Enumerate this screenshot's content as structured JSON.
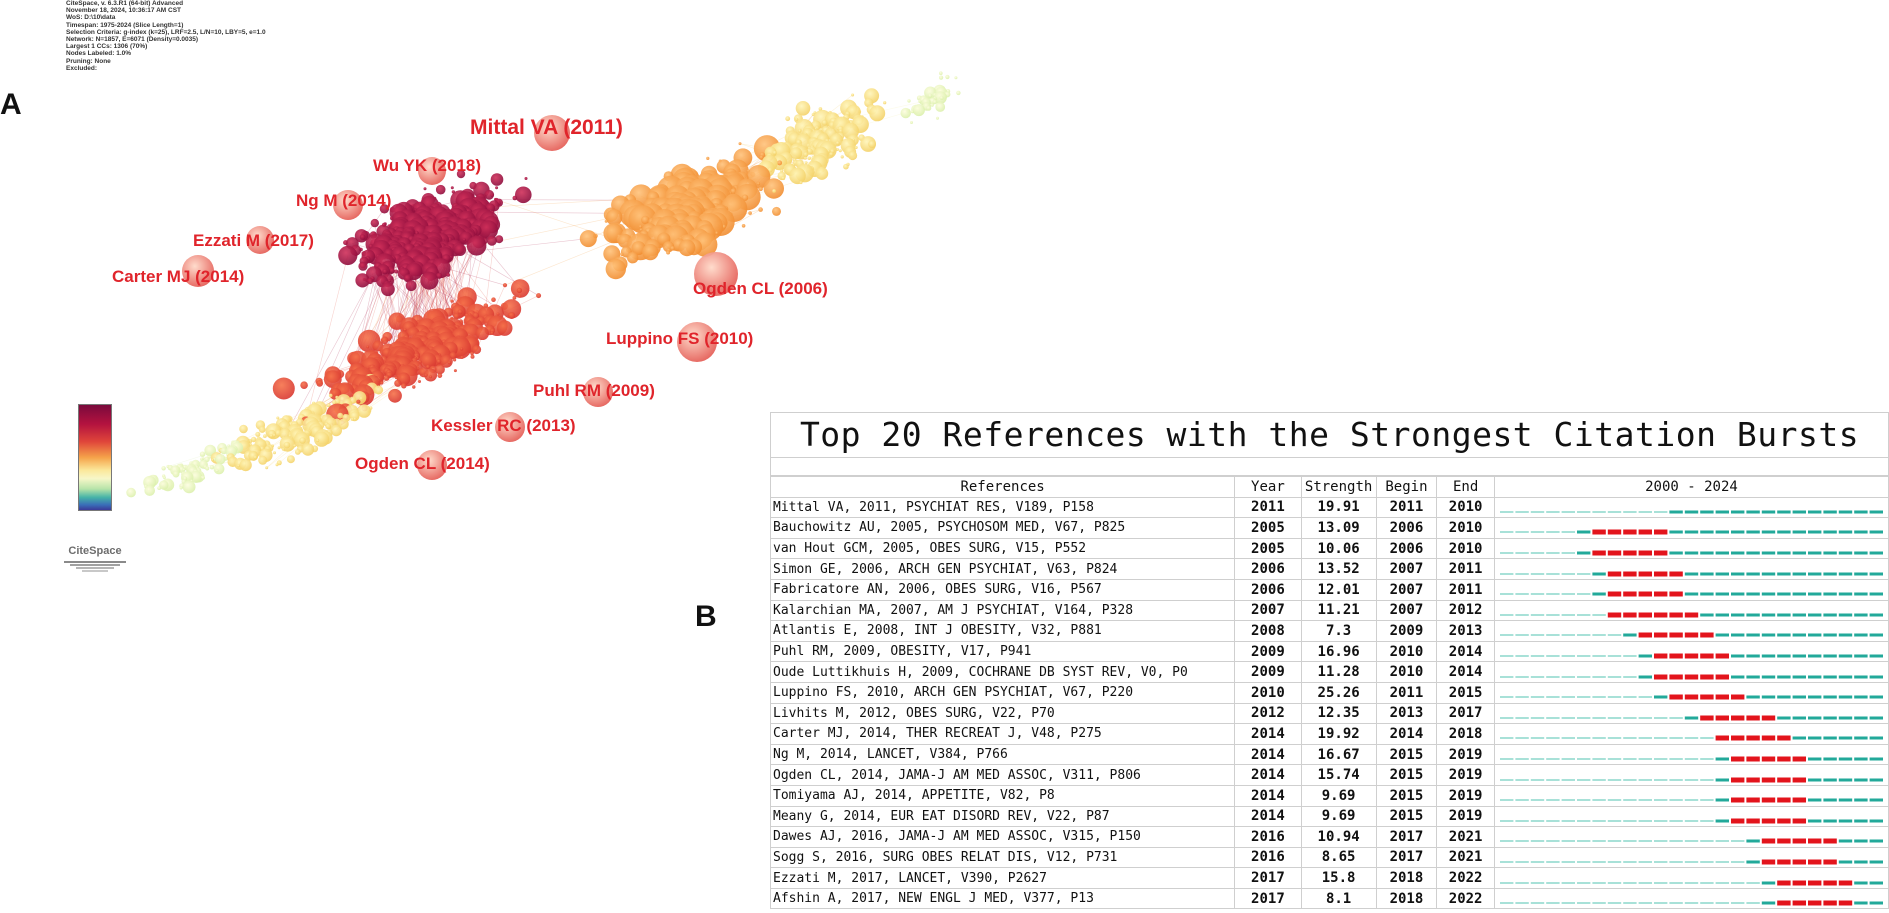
{
  "panel_a": {
    "letter": "A",
    "meta_lines": [
      "CiteSpace, v. 6.3.R1 (64-bit) Advanced",
      "November 18, 2024, 10:36:17 AM CST",
      "WoS: D:\\10\\data",
      "Timespan: 1975-2024 (Slice Length=1)",
      "Selection Criteria: g-index (k=25), LRF=2.5, L/N=10, LBY=5, e=1.0",
      "Network: N=1857, E=6071 (Density=0.0035)",
      "Largest 1 CCs: 1306 (70%)",
      "Nodes Labeled: 1.0%",
      "Pruning: None",
      "Excluded:"
    ],
    "node_labels": [
      "Mittal VA (2011)",
      "Wu YK (2018)",
      "Ng M (2014)",
      "Ezzati M (2017)",
      "Carter MJ (2014)",
      "Ogden CL (2006)",
      "Luppino FS (2010)",
      "Puhl RM (2009)",
      "Kessler RC (2013)",
      "Ogden CL (2014)"
    ],
    "label_color": "#e0242b",
    "logo_text": "CiteSpace"
  },
  "panel_b": {
    "letter": "B",
    "title": "Top 20 References with the Strongest Citation Bursts",
    "headers": {
      "references": "References",
      "year": "Year",
      "strength": "Strength",
      "begin": "Begin",
      "end": "End",
      "range": "2000 - 2024"
    },
    "timeline_start": 2000,
    "timeline_end": 2024,
    "colors": {
      "burst": "#e3141c",
      "active": "#22a99a",
      "inactive": "#a8e1d8"
    },
    "rows": [
      {
        "ref": "Mittal VA, 2011, PSYCHIAT RES, V189, P158",
        "year": "2011",
        "strength": "19.91",
        "begin": "2011",
        "end": "2010",
        "pub": 2011,
        "b": null,
        "e": null
      },
      {
        "ref": "Bauchowitz AU, 2005, PSYCHOSOM MED, V67, P825",
        "year": "2005",
        "strength": "13.09",
        "begin": "2006",
        "end": "2010",
        "pub": 2005,
        "b": 2006,
        "e": 2010
      },
      {
        "ref": "van Hout GCM, 2005, OBES SURG, V15, P552",
        "year": "2005",
        "strength": "10.06",
        "begin": "2006",
        "end": "2010",
        "pub": 2005,
        "b": 2006,
        "e": 2010
      },
      {
        "ref": "Simon GE, 2006, ARCH GEN PSYCHIAT, V63, P824",
        "year": "2006",
        "strength": "13.52",
        "begin": "2007",
        "end": "2011",
        "pub": 2006,
        "b": 2007,
        "e": 2011
      },
      {
        "ref": "Fabricatore AN, 2006, OBES SURG, V16, P567",
        "year": "2006",
        "strength": "12.01",
        "begin": "2007",
        "end": "2011",
        "pub": 2006,
        "b": 2007,
        "e": 2011
      },
      {
        "ref": "Kalarchian MA, 2007, AM J PSYCHIAT, V164, P328",
        "year": "2007",
        "strength": "11.21",
        "begin": "2007",
        "end": "2012",
        "pub": 2007,
        "b": 2007,
        "e": 2012
      },
      {
        "ref": "Atlantis E, 2008, INT J OBESITY, V32, P881",
        "year": "2008",
        "strength": "7.3",
        "begin": "2009",
        "end": "2013",
        "pub": 2008,
        "b": 2009,
        "e": 2013
      },
      {
        "ref": "Puhl RM, 2009, OBESITY, V17, P941",
        "year": "2009",
        "strength": "16.96",
        "begin": "2010",
        "end": "2014",
        "pub": 2009,
        "b": 2010,
        "e": 2014
      },
      {
        "ref": "Oude Luttikhuis H, 2009, COCHRANE DB SYST REV, V0, P0",
        "year": "2009",
        "strength": "11.28",
        "begin": "2010",
        "end": "2014",
        "pub": 2009,
        "b": 2010,
        "e": 2014
      },
      {
        "ref": "Luppino FS, 2010, ARCH GEN PSYCHIAT, V67, P220",
        "year": "2010",
        "strength": "25.26",
        "begin": "2011",
        "end": "2015",
        "pub": 2010,
        "b": 2011,
        "e": 2015
      },
      {
        "ref": "Livhits M, 2012, OBES SURG, V22, P70",
        "year": "2012",
        "strength": "12.35",
        "begin": "2013",
        "end": "2017",
        "pub": 2012,
        "b": 2013,
        "e": 2017
      },
      {
        "ref": "Carter MJ, 2014, THER RECREAT J, V48, P275",
        "year": "2014",
        "strength": "19.92",
        "begin": "2014",
        "end": "2018",
        "pub": 2014,
        "b": 2014,
        "e": 2018
      },
      {
        "ref": "Ng M, 2014, LANCET, V384, P766",
        "year": "2014",
        "strength": "16.67",
        "begin": "2015",
        "end": "2019",
        "pub": 2014,
        "b": 2015,
        "e": 2019
      },
      {
        "ref": "Ogden CL, 2014, JAMA-J AM MED ASSOC, V311, P806",
        "year": "2014",
        "strength": "15.74",
        "begin": "2015",
        "end": "2019",
        "pub": 2014,
        "b": 2015,
        "e": 2019
      },
      {
        "ref": "Tomiyama AJ, 2014, APPETITE, V82, P8",
        "year": "2014",
        "strength": "9.69",
        "begin": "2015",
        "end": "2019",
        "pub": 2014,
        "b": 2015,
        "e": 2019
      },
      {
        "ref": "Meany G, 2014, EUR EAT DISORD REV, V22, P87",
        "year": "2014",
        "strength": "9.69",
        "begin": "2015",
        "end": "2019",
        "pub": 2014,
        "b": 2015,
        "e": 2019
      },
      {
        "ref": "Dawes AJ, 2016, JAMA-J AM MED ASSOC, V315, P150",
        "year": "2016",
        "strength": "10.94",
        "begin": "2017",
        "end": "2021",
        "pub": 2016,
        "b": 2017,
        "e": 2021
      },
      {
        "ref": "Sogg S, 2016, SURG OBES RELAT DIS, V12, P731",
        "year": "2016",
        "strength": "8.65",
        "begin": "2017",
        "end": "2021",
        "pub": 2016,
        "b": 2017,
        "e": 2021
      },
      {
        "ref": "Ezzati M, 2017, LANCET, V390, P2627",
        "year": "2017",
        "strength": "15.8",
        "begin": "2018",
        "end": "2022",
        "pub": 2017,
        "b": 2018,
        "e": 2022
      },
      {
        "ref": "Afshin A, 2017, NEW ENGL J MED, V377, P13",
        "year": "2017",
        "strength": "8.1",
        "begin": "2018",
        "end": "2022",
        "pub": 2017,
        "b": 2018,
        "e": 2022
      }
    ]
  }
}
